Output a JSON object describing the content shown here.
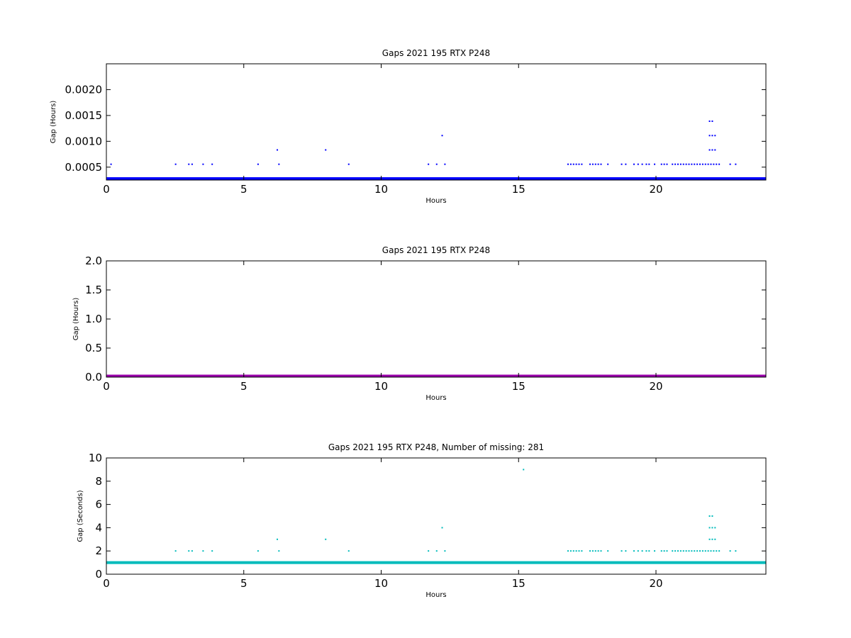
{
  "chart_data": [
    {
      "type": "scatter",
      "title": "Gaps 2021 195 RTX  P248",
      "xlabel": "Hours",
      "ylabel": "Gap (Hours)",
      "xlim": [
        0,
        24
      ],
      "ylim": [
        0.00025,
        0.0025
      ],
      "xticks": [
        "0",
        "5",
        "10",
        "15",
        "20"
      ],
      "yticks": [
        "0.0005",
        "0.0010",
        "0.0015",
        "0.0020"
      ],
      "grid": false,
      "legend": "none",
      "color": "#0000ff",
      "series": [
        {
          "baseline": {
            "y": 0.000278,
            "x": [
              0,
              24
            ]
          },
          "points": [
            [
              0.17,
              0.000556
            ],
            [
              2.52,
              0.000556
            ],
            [
              3.0,
              0.000556
            ],
            [
              3.12,
              0.000556
            ],
            [
              3.52,
              0.000556
            ],
            [
              3.85,
              0.000556
            ],
            [
              5.52,
              0.000556
            ],
            [
              6.28,
              0.000556
            ],
            [
              6.22,
              0.000833
            ],
            [
              7.98,
              0.000833
            ],
            [
              8.82,
              0.000556
            ],
            [
              11.72,
              0.000556
            ],
            [
              12.02,
              0.000556
            ],
            [
              12.32,
              0.000556
            ],
            [
              12.22,
              0.001111
            ],
            [
              16.8,
              0.000556
            ],
            [
              16.9,
              0.000556
            ],
            [
              17.0,
              0.000556
            ],
            [
              17.1,
              0.000556
            ],
            [
              17.2,
              0.000556
            ],
            [
              17.3,
              0.000556
            ],
            [
              17.6,
              0.000556
            ],
            [
              17.7,
              0.000556
            ],
            [
              17.8,
              0.000556
            ],
            [
              17.9,
              0.000556
            ],
            [
              18.0,
              0.000556
            ],
            [
              18.25,
              0.000556
            ],
            [
              18.75,
              0.000556
            ],
            [
              18.9,
              0.000556
            ],
            [
              19.2,
              0.000556
            ],
            [
              19.35,
              0.000556
            ],
            [
              19.5,
              0.000556
            ],
            [
              19.65,
              0.000556
            ],
            [
              19.75,
              0.000556
            ],
            [
              19.95,
              0.000556
            ],
            [
              20.2,
              0.000556
            ],
            [
              20.3,
              0.000556
            ],
            [
              20.4,
              0.000556
            ],
            [
              20.6,
              0.000556
            ],
            [
              20.7,
              0.000556
            ],
            [
              20.8,
              0.000556
            ],
            [
              20.9,
              0.000556
            ],
            [
              21.0,
              0.000556
            ],
            [
              21.1,
              0.000556
            ],
            [
              21.2,
              0.000556
            ],
            [
              21.3,
              0.000556
            ],
            [
              21.4,
              0.000556
            ],
            [
              21.5,
              0.000556
            ],
            [
              21.6,
              0.000556
            ],
            [
              21.7,
              0.000556
            ],
            [
              21.8,
              0.000556
            ],
            [
              21.9,
              0.000556
            ],
            [
              22.0,
              0.000556
            ],
            [
              22.1,
              0.000556
            ],
            [
              22.2,
              0.000556
            ],
            [
              22.3,
              0.000556
            ],
            [
              22.7,
              0.000556
            ],
            [
              22.9,
              0.000556
            ],
            [
              21.95,
              0.000833
            ],
            [
              22.05,
              0.000833
            ],
            [
              22.15,
              0.000833
            ],
            [
              21.95,
              0.001111
            ],
            [
              22.05,
              0.001111
            ],
            [
              22.15,
              0.001111
            ],
            [
              21.95,
              0.001389
            ],
            [
              22.05,
              0.001389
            ]
          ]
        }
      ]
    },
    {
      "type": "line",
      "title": "Gaps 2021 195 RTX  P248",
      "xlabel": "Hours",
      "ylabel": "Gap (Hours)",
      "xlim": [
        0,
        24
      ],
      "ylim": [
        0,
        2.0
      ],
      "xticks": [
        "0",
        "5",
        "10",
        "15",
        "20"
      ],
      "yticks": [
        "0.0",
        "0.5",
        "1.0",
        "1.5",
        "2.0"
      ],
      "grid": false,
      "legend": "none",
      "color": "#9900aa",
      "series": [
        {
          "x": [
            0,
            24
          ],
          "y": [
            0.0,
            0.0
          ]
        }
      ]
    },
    {
      "type": "scatter",
      "title": "Gaps 2021 195 RTX  P248, Number of missing: 281",
      "xlabel": "Hours",
      "ylabel": "Gap (Seconds)",
      "xlim": [
        0,
        24
      ],
      "ylim": [
        0,
        10
      ],
      "xticks": [
        "0",
        "5",
        "10",
        "15",
        "20"
      ],
      "yticks": [
        "0",
        "2",
        "4",
        "6",
        "8",
        "10"
      ],
      "grid": false,
      "legend": "none",
      "color": "#00bbbb",
      "series": [
        {
          "baseline": {
            "y": 1,
            "x": [
              0,
              24
            ]
          },
          "points": [
            [
              2.52,
              2
            ],
            [
              3.0,
              2
            ],
            [
              3.12,
              2
            ],
            [
              3.52,
              2
            ],
            [
              3.85,
              2
            ],
            [
              5.52,
              2
            ],
            [
              6.28,
              2
            ],
            [
              6.22,
              3
            ],
            [
              7.98,
              3
            ],
            [
              8.82,
              2
            ],
            [
              11.72,
              2
            ],
            [
              12.02,
              2
            ],
            [
              12.32,
              2
            ],
            [
              12.22,
              4
            ],
            [
              15.18,
              9
            ],
            [
              16.8,
              2
            ],
            [
              16.9,
              2
            ],
            [
              17.0,
              2
            ],
            [
              17.1,
              2
            ],
            [
              17.2,
              2
            ],
            [
              17.3,
              2
            ],
            [
              17.6,
              2
            ],
            [
              17.7,
              2
            ],
            [
              17.8,
              2
            ],
            [
              17.9,
              2
            ],
            [
              18.0,
              2
            ],
            [
              18.25,
              2
            ],
            [
              18.75,
              2
            ],
            [
              18.9,
              2
            ],
            [
              19.2,
              2
            ],
            [
              19.35,
              2
            ],
            [
              19.5,
              2
            ],
            [
              19.65,
              2
            ],
            [
              19.75,
              2
            ],
            [
              19.95,
              2
            ],
            [
              20.2,
              2
            ],
            [
              20.3,
              2
            ],
            [
              20.4,
              2
            ],
            [
              20.6,
              2
            ],
            [
              20.7,
              2
            ],
            [
              20.8,
              2
            ],
            [
              20.9,
              2
            ],
            [
              21.0,
              2
            ],
            [
              21.1,
              2
            ],
            [
              21.2,
              2
            ],
            [
              21.3,
              2
            ],
            [
              21.4,
              2
            ],
            [
              21.5,
              2
            ],
            [
              21.6,
              2
            ],
            [
              21.7,
              2
            ],
            [
              21.8,
              2
            ],
            [
              21.9,
              2
            ],
            [
              22.0,
              2
            ],
            [
              22.1,
              2
            ],
            [
              22.2,
              2
            ],
            [
              22.3,
              2
            ],
            [
              22.7,
              2
            ],
            [
              22.9,
              2
            ],
            [
              21.95,
              3
            ],
            [
              22.05,
              3
            ],
            [
              22.15,
              3
            ],
            [
              21.95,
              4
            ],
            [
              22.05,
              4
            ],
            [
              22.15,
              4
            ],
            [
              21.95,
              5
            ],
            [
              22.05,
              5
            ]
          ]
        }
      ]
    }
  ]
}
